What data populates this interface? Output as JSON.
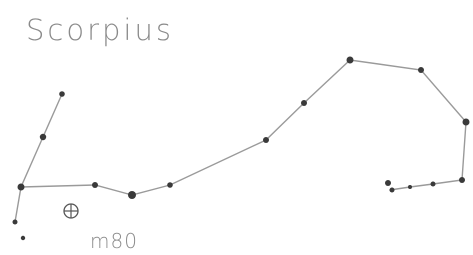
{
  "title": "Scorpius",
  "objects": [
    {
      "label": "m80"
    }
  ]
}
